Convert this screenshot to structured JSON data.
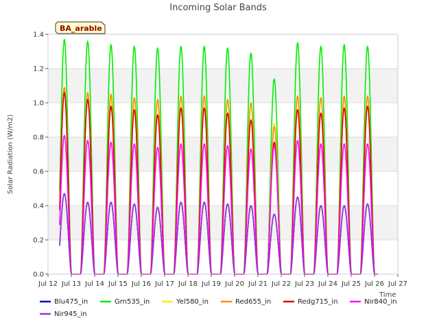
{
  "chart_data": {
    "type": "line",
    "title": "Incoming Solar Bands",
    "ylabel": "Solar Radiation (W/m2)",
    "xlabel": "Time",
    "site_label": "BA_arable",
    "ylim": [
      0,
      1.4
    ],
    "yticks": [
      0.0,
      0.2,
      0.4,
      0.6,
      0.8,
      1.0,
      1.2,
      1.4
    ],
    "ytick_labels": [
      "0.0",
      "0.2",
      "0.4",
      "0.6",
      "0.8",
      "1.0",
      "1.2",
      "1.4"
    ],
    "xlim": [
      12,
      27
    ],
    "xticks": [
      12,
      13,
      14,
      15,
      16,
      17,
      18,
      19,
      20,
      21,
      22,
      23,
      24,
      25,
      26,
      27
    ],
    "xtick_labels": [
      "Jul 12",
      "Jul 13",
      "Jul 14",
      "Jul 15",
      "Jul 16",
      "Jul 17",
      "Jul 18",
      "Jul 19",
      "Jul 20",
      "Jul 21",
      "Jul 22",
      "Jul 23",
      "Jul 24",
      "Jul 25",
      "Jul 26",
      "Jul 27"
    ],
    "grid": true,
    "legend_position": "bottom",
    "day_peak_times": [
      12.7,
      13.7,
      14.7,
      15.7,
      16.7,
      17.7,
      18.7,
      19.7,
      20.7,
      21.7,
      22.7,
      23.7,
      24.7,
      25.7
    ],
    "series": [
      {
        "name": "Blu475_in",
        "color": "#0000cc",
        "peaks": [
          0.47,
          0.42,
          0.42,
          0.41,
          0.39,
          0.42,
          0.42,
          0.41,
          0.4,
          0.35,
          0.45,
          0.4,
          0.4,
          0.41
        ]
      },
      {
        "name": "Grn535_in",
        "color": "#00ee00",
        "peaks": [
          1.37,
          1.36,
          1.34,
          1.33,
          1.32,
          1.33,
          1.33,
          1.32,
          1.29,
          1.14,
          1.35,
          1.33,
          1.34,
          1.33
        ]
      },
      {
        "name": "Yel580_in",
        "color": "#ffee00",
        "peaks": [
          1.08,
          1.05,
          1.03,
          1.02,
          1.01,
          1.03,
          1.03,
          1.01,
          0.99,
          0.88,
          1.04,
          1.03,
          1.03,
          1.03
        ]
      },
      {
        "name": "Red655_in",
        "color": "#ff8c00",
        "peaks": [
          1.09,
          1.06,
          1.05,
          1.03,
          1.02,
          1.04,
          1.04,
          1.02,
          1.0,
          0.86,
          1.04,
          1.03,
          1.04,
          1.04
        ]
      },
      {
        "name": "Redg715_in",
        "color": "#dd0000",
        "peaks": [
          1.06,
          1.02,
          0.98,
          0.96,
          0.93,
          0.97,
          0.97,
          0.94,
          0.9,
          0.77,
          0.96,
          0.94,
          0.97,
          0.98
        ]
      },
      {
        "name": "Nir840_in",
        "color": "#ff00ff",
        "peaks": [
          0.81,
          0.78,
          0.77,
          0.76,
          0.74,
          0.76,
          0.76,
          0.75,
          0.73,
          0.75,
          0.78,
          0.76,
          0.76,
          0.76
        ]
      },
      {
        "name": "Nir945_in",
        "color": "#9933cc",
        "peaks": [
          0.47,
          0.42,
          0.42,
          0.41,
          0.39,
          0.42,
          0.42,
          0.41,
          0.4,
          0.35,
          0.45,
          0.4,
          0.4,
          0.41
        ]
      }
    ]
  }
}
